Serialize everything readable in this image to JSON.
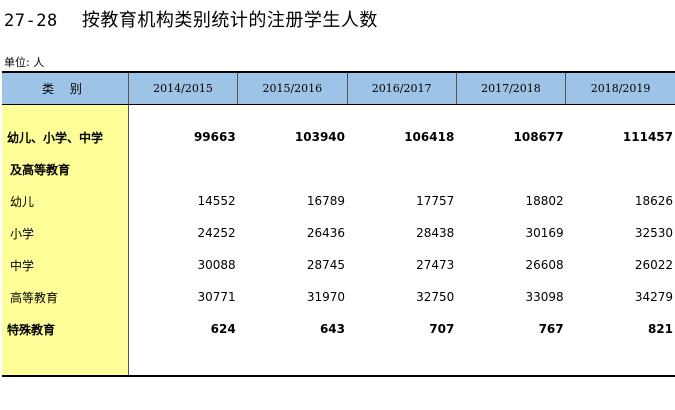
{
  "title": {
    "code": "27-28",
    "text": "按教育机构类别统计的注册学生人数"
  },
  "unit": "单位: 人",
  "table": {
    "header": [
      "类 别",
      "2014/2015",
      "2015/2016",
      "2016/2017",
      "2017/2018",
      "2018/2019"
    ],
    "rows": [
      {
        "label": "幼儿、小学、中学",
        "values": [
          "99663",
          "103940",
          "106418",
          "108677",
          "111457"
        ]
      },
      {
        "label": "及高等教育"
      },
      {
        "label": "幼儿",
        "values": [
          "14552",
          "16789",
          "17757",
          "18802",
          "18626"
        ]
      },
      {
        "label": "小学",
        "values": [
          "24252",
          "26436",
          "28438",
          "30169",
          "32530"
        ]
      },
      {
        "label": "中学",
        "values": [
          "30088",
          "28745",
          "27473",
          "26608",
          "26022"
        ]
      },
      {
        "label": "高等教育",
        "values": [
          "30771",
          "31970",
          "32750",
          "33098",
          "34279"
        ]
      },
      {
        "label": "特殊教育",
        "values": [
          "624",
          "643",
          "707",
          "767",
          "821"
        ]
      }
    ]
  },
  "colors": {
    "header_bg": "#9dc3e6",
    "label_bg": "#ffff99"
  }
}
